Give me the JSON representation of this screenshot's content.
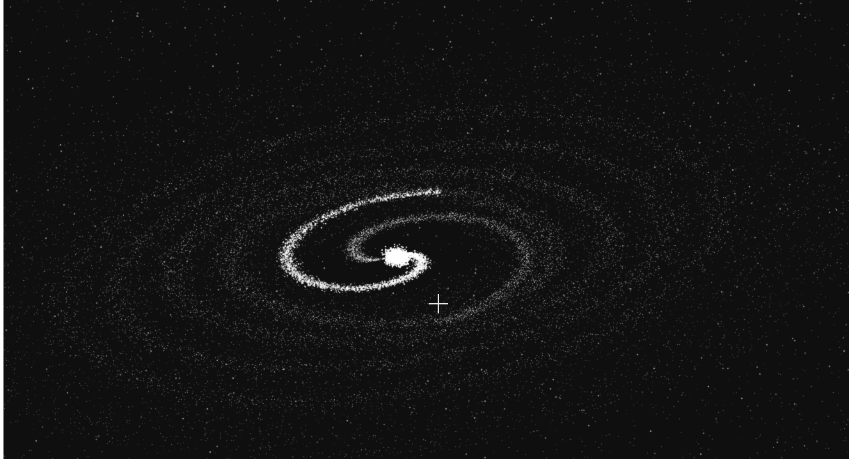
{
  "scene": {
    "background_color": "#0f0f0f",
    "particle_color": "#ffffff",
    "core_color": "#ffffff",
    "description_items": [
      "galaxy-particle-field",
      "crosshair-cursor"
    ]
  },
  "cursor": {
    "icon": "crosshair-icon",
    "color": "#e8e8e8"
  }
}
